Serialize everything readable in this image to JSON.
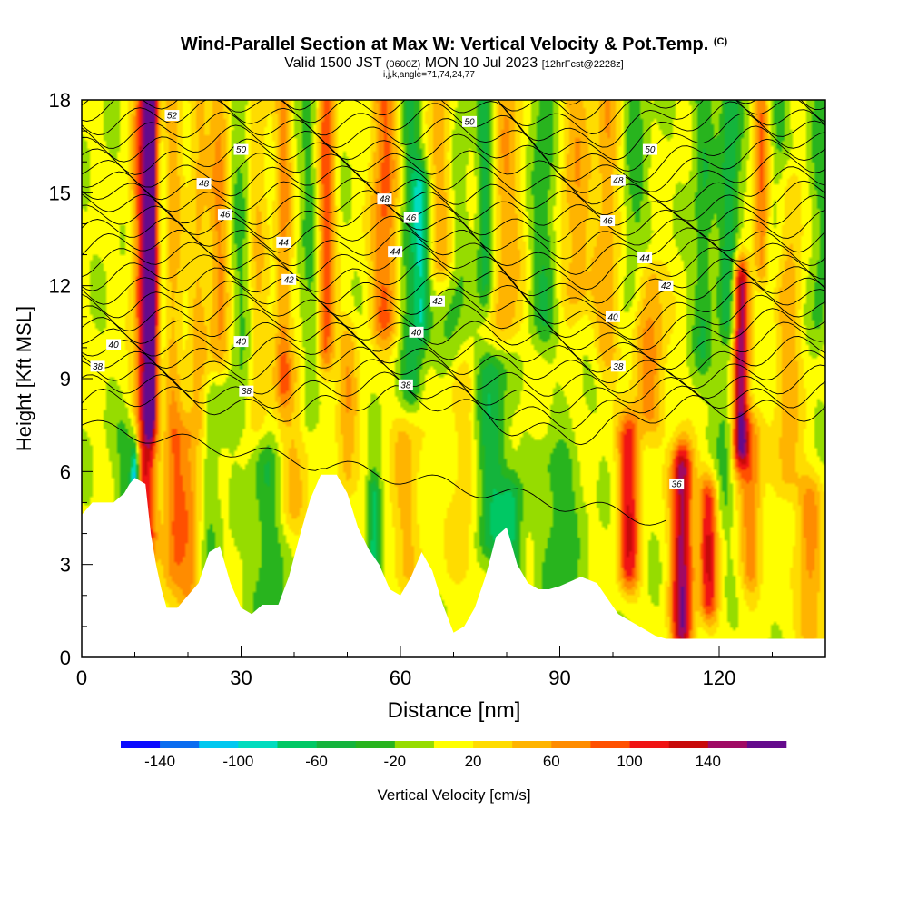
{
  "title": {
    "main": "Wind-Parallel Section at Max W: Vertical Velocity & Pot.Temp.",
    "copyright": "(C)",
    "valid": "Valid 1500 JST",
    "utc": "(0600Z)",
    "date": "MON 10 Jul 2023",
    "fcst": "[12hrFcst@2228z]",
    "indices": "i,j,k,angle=71,74,24,77"
  },
  "chart_data": {
    "type": "heatmap",
    "xlabel": "Distance [nm]",
    "ylabel": "Height [Kft MSL]",
    "xlim": [
      0,
      140
    ],
    "ylim": [
      0,
      18
    ],
    "x_ticks": [
      0,
      30,
      60,
      90,
      120
    ],
    "y_ticks": [
      0,
      3,
      6,
      9,
      12,
      15,
      18
    ],
    "colorbar": {
      "label": "Vertical Velocity [cm/s]",
      "tick_values": [
        -140,
        -100,
        -60,
        -20,
        20,
        60,
        100,
        140
      ],
      "bounds": [
        -160,
        -140,
        -120,
        -100,
        -80,
        -60,
        -40,
        -20,
        0,
        20,
        40,
        60,
        80,
        100,
        120,
        140,
        160
      ],
      "colors": [
        "#0a0aff",
        "#0a6cf0",
        "#00c8f0",
        "#00dcbe",
        "#00c864",
        "#14b43c",
        "#28b41e",
        "#96dc00",
        "#ffff00",
        "#ffdc00",
        "#ffb400",
        "#ff8c00",
        "#ff5000",
        "#f01414",
        "#c80a0a",
        "#a00a64",
        "#640a8c"
      ]
    },
    "terrain_kft": [
      [
        0,
        4.6
      ],
      [
        2,
        5.0
      ],
      [
        6,
        5.0
      ],
      [
        8,
        5.3
      ],
      [
        9,
        5.6
      ],
      [
        10,
        5.8
      ],
      [
        12,
        5.6
      ],
      [
        13,
        4.0
      ],
      [
        14,
        3.0
      ],
      [
        15,
        2.2
      ],
      [
        16,
        1.6
      ],
      [
        18,
        1.6
      ],
      [
        20,
        2.0
      ],
      [
        22,
        2.4
      ],
      [
        24,
        3.4
      ],
      [
        26,
        3.6
      ],
      [
        28,
        2.4
      ],
      [
        30,
        1.6
      ],
      [
        32,
        1.4
      ],
      [
        34,
        1.7
      ],
      [
        37,
        1.7
      ],
      [
        39,
        2.6
      ],
      [
        41,
        3.9
      ],
      [
        43,
        5.1
      ],
      [
        45,
        5.9
      ],
      [
        48,
        5.9
      ],
      [
        50,
        5.3
      ],
      [
        52,
        4.2
      ],
      [
        54,
        3.5
      ],
      [
        56,
        3.0
      ],
      [
        58,
        2.2
      ],
      [
        60,
        2.0
      ],
      [
        62,
        2.6
      ],
      [
        64,
        3.4
      ],
      [
        66,
        2.8
      ],
      [
        68,
        1.7
      ],
      [
        70,
        0.8
      ],
      [
        72,
        1.0
      ],
      [
        74,
        1.6
      ],
      [
        76,
        2.6
      ],
      [
        78,
        3.9
      ],
      [
        80,
        4.2
      ],
      [
        82,
        3.0
      ],
      [
        84,
        2.4
      ],
      [
        86,
        2.2
      ],
      [
        88,
        2.2
      ],
      [
        90,
        2.3
      ],
      [
        94,
        2.6
      ],
      [
        97,
        2.4
      ],
      [
        99,
        1.9
      ],
      [
        101,
        1.4
      ],
      [
        103,
        1.2
      ],
      [
        106,
        0.9
      ],
      [
        108,
        0.7
      ],
      [
        110,
        0.6
      ],
      [
        120,
        0.6
      ],
      [
        128,
        0.6
      ],
      [
        140,
        0.6
      ]
    ],
    "w_cells": [
      {
        "x": 12,
        "h0": 4,
        "h1": 18,
        "w": 120,
        "s": 2.2
      },
      {
        "x": 13,
        "h0": 8,
        "h1": 18,
        "w": 140,
        "s": 1.2
      },
      {
        "x": 17,
        "h0": 3,
        "h1": 18,
        "w": 50,
        "s": 2.0
      },
      {
        "x": 20,
        "h0": 2,
        "h1": 7,
        "w": 60,
        "s": 3.0
      },
      {
        "x": 22,
        "h0": 8,
        "h1": 18,
        "w": 40,
        "s": 1.8
      },
      {
        "x": 26,
        "h0": 10,
        "h1": 18,
        "w": 60,
        "s": 2.0
      },
      {
        "x": 33,
        "h0": 8,
        "h1": 18,
        "w": 40,
        "s": 2.0
      },
      {
        "x": 38,
        "h0": 9,
        "h1": 18,
        "w": 60,
        "s": 1.6
      },
      {
        "x": 40,
        "h0": 5,
        "h1": 9,
        "w": 40,
        "s": 3.0
      },
      {
        "x": 46,
        "h0": 10,
        "h1": 18,
        "w": 90,
        "s": 1.6
      },
      {
        "x": 50,
        "h0": 6,
        "h1": 10,
        "w": 50,
        "s": 2.0
      },
      {
        "x": 57,
        "h0": 11,
        "h1": 18,
        "w": 80,
        "s": 2.5
      },
      {
        "x": 61,
        "h0": 3,
        "h1": 7,
        "w": 40,
        "s": 3.0
      },
      {
        "x": 68,
        "h0": 13,
        "h1": 18,
        "w": 60,
        "s": 2.5
      },
      {
        "x": 72,
        "h0": 3,
        "h1": 9,
        "w": 30,
        "s": 3.0
      },
      {
        "x": 80,
        "h0": 11,
        "h1": 18,
        "w": 50,
        "s": 3.0
      },
      {
        "x": 93,
        "h0": 12,
        "h1": 18,
        "w": 50,
        "s": 3.0
      },
      {
        "x": 99,
        "h0": 10,
        "h1": 18,
        "w": 50,
        "s": 2.5
      },
      {
        "x": 103,
        "h0": 3,
        "h1": 7,
        "w": 110,
        "s": 2.0
      },
      {
        "x": 107,
        "h0": 8,
        "h1": 12,
        "w": 60,
        "s": 3.0
      },
      {
        "x": 113,
        "h0": 1,
        "h1": 6,
        "w": 150,
        "s": 2.0
      },
      {
        "x": 118,
        "h0": 2,
        "h1": 5,
        "w": 110,
        "s": 1.8
      },
      {
        "x": 124,
        "h0": 7,
        "h1": 12,
        "w": 160,
        "s": 1.5
      },
      {
        "x": 126,
        "h0": 3,
        "h1": 7,
        "w": 70,
        "s": 2.0
      },
      {
        "x": 128,
        "h0": 13,
        "h1": 18,
        "w": 80,
        "s": 1.5
      },
      {
        "x": 133,
        "h0": 6,
        "h1": 15,
        "w": 50,
        "s": 2.5
      },
      {
        "x": 137,
        "h0": 1,
        "h1": 5,
        "w": 60,
        "s": 2.5
      },
      {
        "x": 9,
        "h0": 2,
        "h1": 7,
        "w": -40,
        "s": 2.5
      },
      {
        "x": 10,
        "h0": 4,
        "h1": 6,
        "w": -130,
        "s": 0.8
      },
      {
        "x": 15,
        "h0": 8,
        "h1": 18,
        "w": -30,
        "s": 1.5
      },
      {
        "x": 24,
        "h0": 0,
        "h1": 8,
        "w": -30,
        "s": 2.0
      },
      {
        "x": 30,
        "h0": 8,
        "h1": 18,
        "w": -30,
        "s": 2.5
      },
      {
        "x": 35,
        "h0": 1,
        "h1": 6,
        "w": -40,
        "s": 3.0
      },
      {
        "x": 43,
        "h0": 8,
        "h1": 18,
        "w": -30,
        "s": 2.0
      },
      {
        "x": 55,
        "h0": 2,
        "h1": 5,
        "w": -80,
        "s": 1.2
      },
      {
        "x": 62,
        "h0": 9,
        "h1": 18,
        "w": -50,
        "s": 2.0
      },
      {
        "x": 64,
        "h0": 11,
        "h1": 15,
        "w": -70,
        "s": 1.5
      },
      {
        "x": 70,
        "h0": 10,
        "h1": 18,
        "w": -30,
        "s": 2.5
      },
      {
        "x": 76,
        "h0": 12,
        "h1": 18,
        "w": -60,
        "s": 1.5
      },
      {
        "x": 77,
        "h0": 4,
        "h1": 9,
        "w": -60,
        "s": 3.0
      },
      {
        "x": 81,
        "h0": 3,
        "h1": 5,
        "w": -60,
        "s": 2.0
      },
      {
        "x": 87,
        "h0": 11,
        "h1": 18,
        "w": -40,
        "s": 2.5
      },
      {
        "x": 90,
        "h0": 2,
        "h1": 6,
        "w": -40,
        "s": 3.5
      },
      {
        "x": 104,
        "h0": 12,
        "h1": 18,
        "w": -30,
        "s": 2.5
      },
      {
        "x": 117,
        "h0": 10,
        "h1": 18,
        "w": -40,
        "s": 2.0
      },
      {
        "x": 121,
        "h0": 5,
        "h1": 9,
        "w": -30,
        "s": 2.0
      },
      {
        "x": 122,
        "h0": 11,
        "h1": 18,
        "w": -60,
        "s": 2.0
      },
      {
        "x": 131,
        "h0": 13,
        "h1": 18,
        "w": -30,
        "s": 2.5
      },
      {
        "x": 139,
        "h0": 11,
        "h1": 18,
        "w": -30,
        "s": 2.0
      }
    ],
    "theta_labels": [
      {
        "v": "52",
        "x": 17,
        "y": 17.5
      },
      {
        "v": "50",
        "x": 30,
        "y": 16.4
      },
      {
        "v": "48",
        "x": 23,
        "y": 15.3
      },
      {
        "v": "46",
        "x": 27,
        "y": 14.3
      },
      {
        "v": "44",
        "x": 38,
        "y": 13.4
      },
      {
        "v": "42",
        "x": 39,
        "y": 12.2
      },
      {
        "v": "40",
        "x": 6,
        "y": 10.1
      },
      {
        "v": "40",
        "x": 30,
        "y": 10.2
      },
      {
        "v": "38",
        "x": 3,
        "y": 9.4
      },
      {
        "v": "38",
        "x": 31,
        "y": 8.6
      },
      {
        "v": "48",
        "x": 57,
        "y": 14.8
      },
      {
        "v": "46",
        "x": 62,
        "y": 14.2
      },
      {
        "v": "44",
        "x": 59,
        "y": 13.1
      },
      {
        "v": "42",
        "x": 67,
        "y": 11.5
      },
      {
        "v": "40",
        "x": 63,
        "y": 10.5
      },
      {
        "v": "38",
        "x": 61,
        "y": 8.8
      },
      {
        "v": "50",
        "x": 73,
        "y": 17.3
      },
      {
        "v": "50",
        "x": 107,
        "y": 16.4
      },
      {
        "v": "48",
        "x": 101,
        "y": 15.4
      },
      {
        "v": "46",
        "x": 99,
        "y": 14.1
      },
      {
        "v": "44",
        "x": 106,
        "y": 12.9
      },
      {
        "v": "42",
        "x": 110,
        "y": 12.0
      },
      {
        "v": "40",
        "x": 100,
        "y": 11.0
      },
      {
        "v": "38",
        "x": 101,
        "y": 9.4
      },
      {
        "v": "36",
        "x": 112,
        "y": 5.6
      }
    ]
  }
}
